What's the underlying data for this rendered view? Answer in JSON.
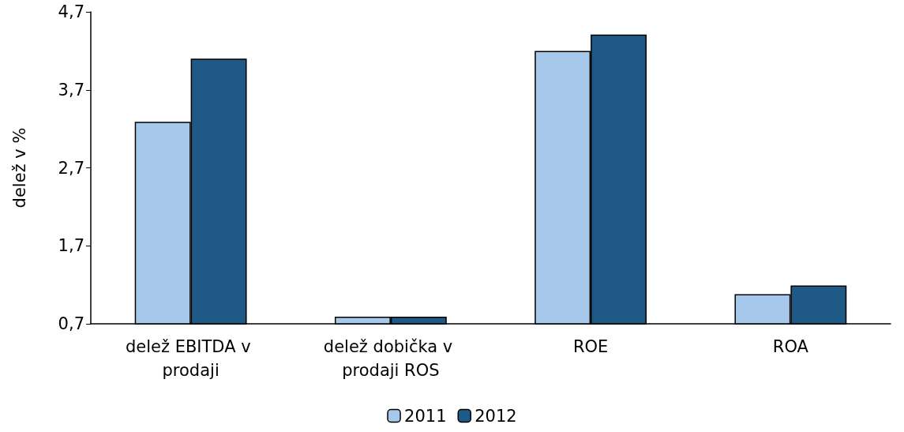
{
  "chart_data": {
    "type": "bar",
    "ylabel": "delež v %",
    "categories": [
      "delež EBITDA v prodaji",
      "delež dobička v prodaji ROS",
      "ROE",
      "ROA"
    ],
    "series": [
      {
        "name": "2011",
        "color": "#a6c8ea",
        "values": [
          3.29,
          0.79,
          4.2,
          1.08
        ]
      },
      {
        "name": "2012",
        "color": "#1f5a87",
        "values": [
          4.1,
          0.79,
          4.41,
          1.19
        ]
      }
    ],
    "ylim": [
      0.7,
      4.7
    ],
    "yticks": [
      {
        "value": 0.7,
        "label": "0,7"
      },
      {
        "value": 1.7,
        "label": "1,7"
      },
      {
        "value": 2.7,
        "label": "2,7"
      },
      {
        "value": 3.7,
        "label": "3,7"
      },
      {
        "value": 4.7,
        "label": "4,7"
      }
    ],
    "grid": false,
    "legend": "bottom"
  }
}
